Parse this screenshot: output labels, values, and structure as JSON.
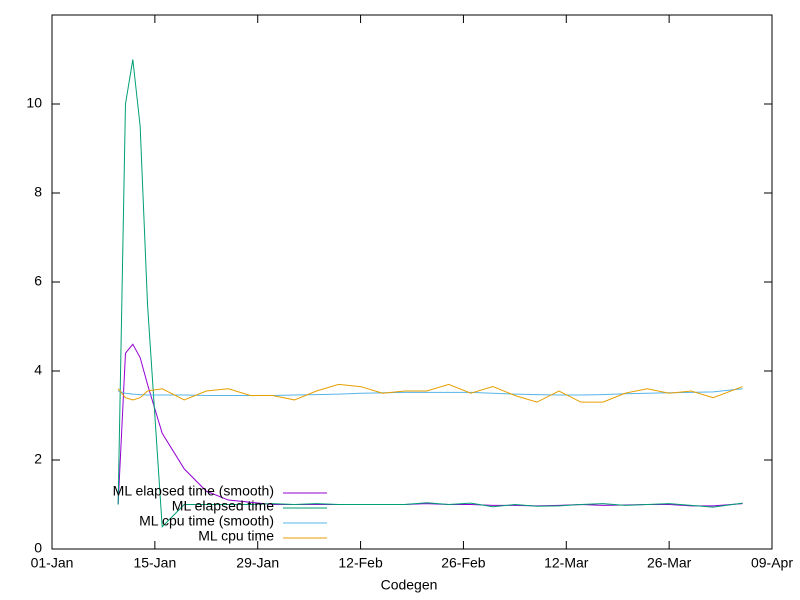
{
  "chart_data": {
    "type": "line",
    "xlabel": "Codegen",
    "x": [
      "10-Jan",
      "11-Jan",
      "12-Jan",
      "13-Jan",
      "14-Jan",
      "16-Jan",
      "19-Jan",
      "22-Jan",
      "25-Jan",
      "28-Jan",
      "31-Jan",
      "03-Feb",
      "06-Feb",
      "09-Feb",
      "12-Feb",
      "15-Feb",
      "18-Feb",
      "21-Feb",
      "24-Feb",
      "27-Feb",
      "02-Mar",
      "05-Mar",
      "08-Mar",
      "11-Mar",
      "14-Mar",
      "17-Mar",
      "20-Mar",
      "23-Mar",
      "26-Mar",
      "29-Mar",
      "01-Apr",
      "05-Apr"
    ],
    "xlim": [
      "01-Jan",
      "09-Apr"
    ],
    "xticks": [
      "01-Jan",
      "15-Jan",
      "29-Jan",
      "12-Feb",
      "26-Feb",
      "12-Mar",
      "26-Mar",
      "09-Apr"
    ],
    "ylim": [
      0,
      12
    ],
    "yticks": [
      0,
      2,
      4,
      6,
      8,
      10
    ],
    "grid": false,
    "legend": "bottom-left",
    "series": [
      {
        "name": "ML elapsed time (smooth)",
        "color": "#9400d3",
        "values": [
          1.0,
          4.4,
          4.6,
          4.3,
          3.7,
          2.6,
          1.8,
          1.3,
          1.1,
          1.05,
          1.0,
          1.0,
          1.0,
          1.0,
          1.0,
          1.0,
          1.0,
          1.02,
          1.0,
          1.0,
          0.98,
          0.98,
          0.97,
          0.98,
          1.0,
          0.98,
          0.99,
          1.0,
          1.0,
          0.97,
          0.97,
          1.02
        ]
      },
      {
        "name": "ML elapsed time",
        "color": "#009e73",
        "values": [
          1.0,
          10.0,
          11.0,
          9.5,
          5.5,
          0.5,
          1.0,
          1.0,
          1.0,
          1.0,
          1.02,
          1.0,
          1.02,
          1.0,
          1.0,
          1.0,
          1.0,
          1.04,
          1.0,
          1.03,
          0.95,
          1.0,
          0.96,
          0.97,
          1.0,
          1.02,
          0.98,
          1.0,
          1.02,
          0.98,
          0.94,
          1.03
        ]
      },
      {
        "name": "ML cpu time (smooth)",
        "color": "#56b4e9",
        "values": [
          3.55,
          3.5,
          3.48,
          3.47,
          3.46,
          3.46,
          3.46,
          3.45,
          3.45,
          3.45,
          3.45,
          3.46,
          3.47,
          3.48,
          3.5,
          3.51,
          3.52,
          3.52,
          3.52,
          3.52,
          3.5,
          3.48,
          3.47,
          3.46,
          3.46,
          3.47,
          3.49,
          3.5,
          3.51,
          3.52,
          3.53,
          3.6
        ]
      },
      {
        "name": "ML cpu time",
        "color": "#e69f00",
        "values": [
          3.6,
          3.4,
          3.35,
          3.4,
          3.55,
          3.6,
          3.35,
          3.55,
          3.6,
          3.45,
          3.45,
          3.35,
          3.55,
          3.7,
          3.65,
          3.5,
          3.55,
          3.55,
          3.7,
          3.5,
          3.65,
          3.45,
          3.3,
          3.55,
          3.3,
          3.3,
          3.5,
          3.6,
          3.5,
          3.55,
          3.4,
          3.65
        ]
      }
    ]
  }
}
